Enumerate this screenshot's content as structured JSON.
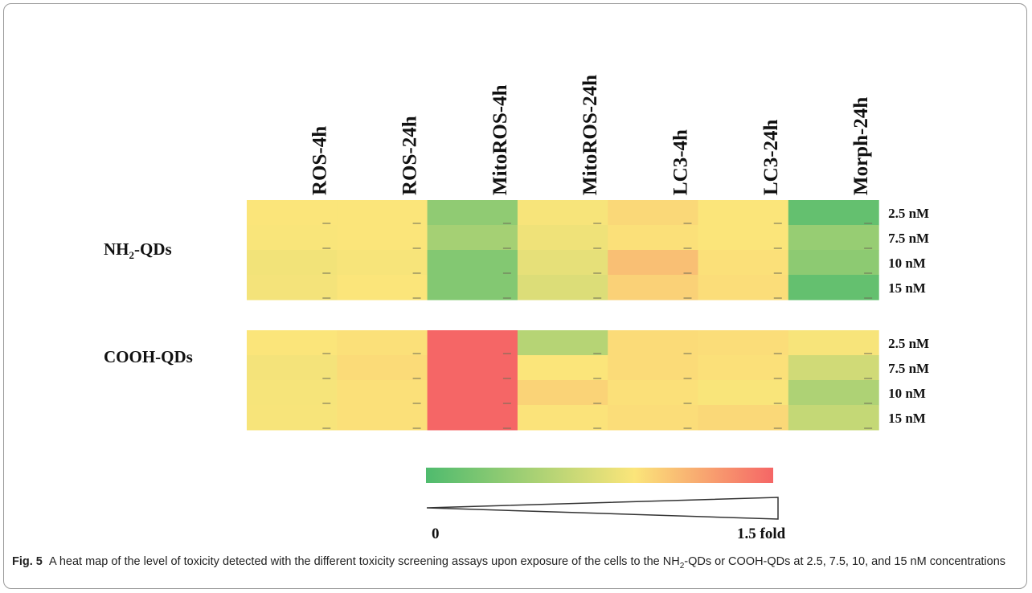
{
  "chart_data": {
    "type": "heatmap",
    "columns": [
      "ROS-4h",
      "ROS-24h",
      "MitoROS-4h",
      "MitoROS-24h",
      "LC3-4h",
      "LC3-24h",
      "Morph-24h"
    ],
    "groups": [
      {
        "label_main": "NH",
        "label_sub": "2",
        "label_tail": "-QDs",
        "rows": [
          "2.5 nM",
          "7.5 nM",
          "10 nM",
          "15 nM"
        ],
        "values": [
          [
            1.0,
            1.0,
            0.38,
            0.98,
            1.05,
            1.0,
            0.12
          ],
          [
            0.99,
            1.0,
            0.5,
            0.93,
            1.02,
            1.0,
            0.42
          ],
          [
            0.95,
            0.98,
            0.3,
            0.88,
            1.15,
            1.02,
            0.36
          ],
          [
            0.96,
            1.0,
            0.3,
            0.82,
            1.08,
            1.03,
            0.12
          ]
        ]
      },
      {
        "label_main": "COOH-QDs",
        "label_sub": "",
        "label_tail": "",
        "rows": [
          "2.5 nM",
          "7.5 nM",
          "10 nM",
          "15 nM"
        ],
        "values": [
          [
            1.0,
            1.02,
            1.5,
            0.6,
            1.04,
            1.03,
            0.98
          ],
          [
            0.96,
            1.04,
            1.5,
            1.0,
            1.04,
            1.02,
            0.75
          ],
          [
            0.97,
            1.02,
            1.5,
            1.07,
            1.02,
            0.99,
            0.55
          ],
          [
            0.98,
            1.02,
            1.5,
            1.01,
            1.03,
            1.05,
            0.68
          ]
        ]
      }
    ],
    "scale": {
      "min": 0,
      "max": 1.5,
      "min_label": "0",
      "max_label": "1.5 fold"
    },
    "colors": {
      "low": "#4fbb6e",
      "mid": "#fbe57a",
      "high": "#f56666"
    }
  },
  "caption": {
    "label": "Fig. 5",
    "text_before": "A heat map of the level of toxicity detected with the different toxicity screening assays upon exposure of the cells to the NH",
    "sub": "2",
    "text_after": "-QDs or COOH-QDs at 2.5, 7.5, 10, and 15 nM concentrations"
  }
}
